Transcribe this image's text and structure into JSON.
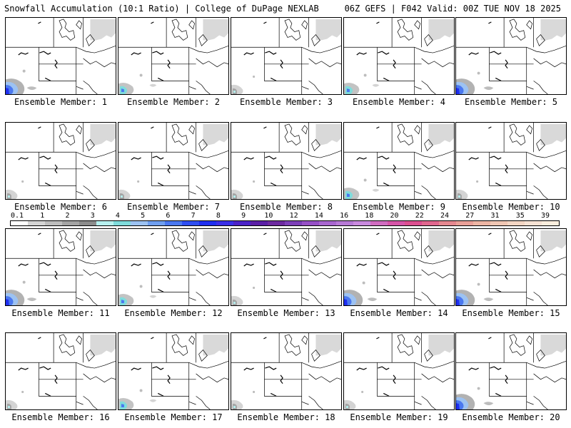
{
  "header": {
    "title_left": "Snowfall Accumulation (10:1 Ratio) | College of DuPage NEXLAB",
    "title_right": "06Z GEFS | F042 Valid: 00Z TUE NOV 18 2025"
  },
  "panels": [
    {
      "label": "Ensemble Member: 1",
      "snow": "heavy-sw"
    },
    {
      "label": "Ensemble Member: 2",
      "snow": "moderate-sw"
    },
    {
      "label": "Ensemble Member: 3",
      "snow": "light-sw"
    },
    {
      "label": "Ensemble Member: 4",
      "snow": "moderate-sw"
    },
    {
      "label": "Ensemble Member: 5",
      "snow": "heavy-sw"
    },
    {
      "label": "Ensemble Member: 6",
      "snow": "light-sw"
    },
    {
      "label": "Ensemble Member: 7",
      "snow": "light-sw"
    },
    {
      "label": "Ensemble Member: 8",
      "snow": "light-sw"
    },
    {
      "label": "Ensemble Member: 9",
      "snow": "moderate-sw"
    },
    {
      "label": "Ensemble Member: 10",
      "snow": "light-sw"
    },
    {
      "label": "Ensemble Member: 11",
      "snow": "heavy-sw"
    },
    {
      "label": "Ensemble Member: 12",
      "snow": "moderate-sw"
    },
    {
      "label": "Ensemble Member: 13",
      "snow": "light-sw"
    },
    {
      "label": "Ensemble Member: 14",
      "snow": "heavy-sw"
    },
    {
      "label": "Ensemble Member: 15",
      "snow": "heavy-sw"
    },
    {
      "label": "Ensemble Member: 16",
      "snow": "light-sw"
    },
    {
      "label": "Ensemble Member: 17",
      "snow": "moderate-sw"
    },
    {
      "label": "Ensemble Member: 18",
      "snow": "light-sw"
    },
    {
      "label": "Ensemble Member: 19",
      "snow": "light-sw"
    },
    {
      "label": "Ensemble Member: 20",
      "snow": "heavy-sw"
    }
  ],
  "legend": {
    "labels": [
      "0.1",
      "1",
      "2",
      "3",
      "4",
      "5",
      "6",
      "7",
      "8",
      "9",
      "10",
      "12",
      "14",
      "16",
      "18",
      "20",
      "22",
      "24",
      "27",
      "31",
      "35",
      "39"
    ],
    "colors": [
      "#ffffff",
      "#d4d4d4",
      "#bdbdbd",
      "#a4a4a4",
      "#8c8c8c",
      "#b6f0ef",
      "#7fdcdc",
      "#9cc2f2",
      "#6f9ff0",
      "#4a78f0",
      "#2e4ef2",
      "#1f2ff0",
      "#3a2fe8",
      "#4b22c8",
      "#5b1fa6",
      "#6d2aa0",
      "#7d3fb8",
      "#9650c6",
      "#a866cf",
      "#b77ad6",
      "#c98adf",
      "#d06cc0",
      "#d655a8",
      "#dc4f90",
      "#e0678e",
      "#e58890",
      "#e9a098",
      "#edb5a4",
      "#f0c7b4",
      "#f3d6c4",
      "#f6e2d4",
      "#fbeede"
    ]
  }
}
